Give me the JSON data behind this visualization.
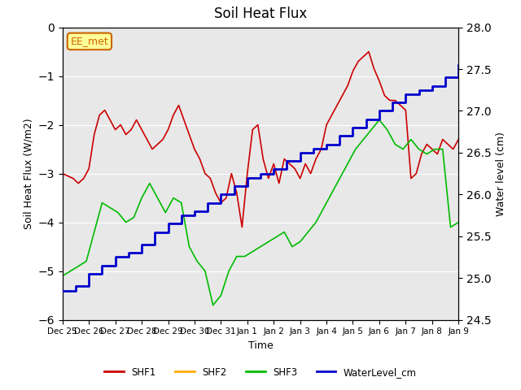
{
  "title": "Soil Heat Flux",
  "xlabel": "Time",
  "ylabel_left": "Soil Heat Flux (W/m2)",
  "ylabel_right": "Water level (cm)",
  "ylim_left": [
    -6.0,
    0.0
  ],
  "ylim_right": [
    24.5,
    28.0
  ],
  "bg_color": "#e8e8e8",
  "annotation_text": "EE_met",
  "annotation_color": "#cc6600",
  "annotation_bg": "#ffff99",
  "shf2_color": "#ffaa00",
  "shf1_color": "#cc0000",
  "shf3_color": "#00bb00",
  "water_color": "#0000cc",
  "xtick_labels": [
    "Dec 25",
    "Dec 26",
    "Dec 27",
    "Dec 28",
    "Dec 29",
    "Dec 30",
    "Dec 31",
    "Jan 1",
    "Jan 2",
    "Jan 3",
    "Jan 4",
    "Jan 5",
    "Jan 6",
    "Jan 7",
    "Jan 8",
    "Jan 9"
  ],
  "shf1_x": [
    0,
    0.2,
    0.4,
    0.6,
    0.8,
    1.0,
    1.2,
    1.4,
    1.6,
    1.8,
    2.0,
    2.2,
    2.4,
    2.6,
    2.8,
    3.0,
    3.2,
    3.4,
    3.6,
    3.8,
    4.0,
    4.2,
    4.4,
    4.6,
    4.8,
    5.0,
    5.2,
    5.4,
    5.6,
    5.8,
    6.0,
    6.2,
    6.4,
    6.6,
    6.8,
    7.0,
    7.2,
    7.4,
    7.6,
    7.8,
    8.0,
    8.2,
    8.4,
    8.6,
    8.8,
    9.0,
    9.2,
    9.4,
    9.6,
    9.8,
    10.0,
    10.2,
    10.4,
    10.6,
    10.8,
    11.0,
    11.2,
    11.4,
    11.6,
    11.8,
    12.0,
    12.2,
    12.4,
    12.6,
    12.8,
    13.0,
    13.2,
    13.4,
    13.6,
    13.8,
    14.0,
    14.2,
    14.4,
    14.6,
    14.8,
    15.0
  ],
  "shf1_y": [
    -3.0,
    -3.05,
    -3.1,
    -3.2,
    -3.1,
    -2.9,
    -2.2,
    -1.8,
    -1.7,
    -1.9,
    -2.1,
    -2.0,
    -2.2,
    -2.1,
    -1.9,
    -2.1,
    -2.3,
    -2.5,
    -2.4,
    -2.3,
    -2.1,
    -1.8,
    -1.6,
    -1.9,
    -2.2,
    -2.5,
    -2.7,
    -3.0,
    -3.1,
    -3.4,
    -3.6,
    -3.5,
    -3.0,
    -3.4,
    -4.1,
    -3.0,
    -2.1,
    -2.0,
    -2.7,
    -3.1,
    -2.8,
    -3.2,
    -2.7,
    -2.8,
    -2.9,
    -3.1,
    -2.8,
    -3.0,
    -2.7,
    -2.5,
    -2.0,
    -1.8,
    -1.6,
    -1.4,
    -1.2,
    -0.9,
    -0.7,
    -0.6,
    -0.5,
    -0.85,
    -1.1,
    -1.4,
    -1.5,
    -1.5,
    -1.6,
    -1.7,
    -3.1,
    -3.0,
    -2.6,
    -2.4,
    -2.5,
    -2.6,
    -2.3,
    -2.4,
    -2.5,
    -2.3
  ],
  "shf3_x": [
    0,
    0.3,
    0.6,
    0.9,
    1.2,
    1.5,
    1.8,
    2.1,
    2.4,
    2.7,
    3.0,
    3.3,
    3.6,
    3.9,
    4.2,
    4.5,
    4.8,
    5.1,
    5.4,
    5.7,
    6.0,
    6.3,
    6.6,
    6.9,
    7.2,
    7.5,
    7.8,
    8.1,
    8.4,
    8.7,
    9.0,
    9.3,
    9.6,
    9.9,
    10.2,
    10.5,
    10.8,
    11.1,
    11.4,
    11.7,
    12.0,
    12.3,
    12.6,
    12.9,
    13.2,
    13.5,
    13.8,
    14.1,
    14.4,
    14.7,
    15.0
  ],
  "shf3_y": [
    -5.1,
    -5.0,
    -4.9,
    -4.8,
    -4.2,
    -3.6,
    -3.7,
    -3.8,
    -4.0,
    -3.9,
    -3.5,
    -3.2,
    -3.5,
    -3.8,
    -3.5,
    -3.6,
    -4.5,
    -4.8,
    -5.0,
    -5.7,
    -5.5,
    -5.0,
    -4.7,
    -4.7,
    -4.6,
    -4.5,
    -4.4,
    -4.3,
    -4.2,
    -4.5,
    -4.4,
    -4.2,
    -4.0,
    -3.7,
    -3.4,
    -3.1,
    -2.8,
    -2.5,
    -2.3,
    -2.1,
    -1.9,
    -2.1,
    -2.4,
    -2.5,
    -2.3,
    -2.5,
    -2.6,
    -2.5,
    -2.5,
    -4.1,
    -4.0
  ],
  "water_x": [
    0,
    0.5,
    1.0,
    1.5,
    2.0,
    2.5,
    3.0,
    3.5,
    4.0,
    4.5,
    5.0,
    5.5,
    6.0,
    6.5,
    7.0,
    7.5,
    8.0,
    8.5,
    9.0,
    9.5,
    10.0,
    10.5,
    11.0,
    11.5,
    12.0,
    12.5,
    13.0,
    13.5,
    14.0,
    14.5,
    15.0
  ],
  "water_y": [
    24.85,
    24.9,
    25.05,
    25.15,
    25.25,
    25.3,
    25.4,
    25.55,
    25.65,
    25.75,
    25.8,
    25.9,
    26.0,
    26.1,
    26.2,
    26.25,
    26.3,
    26.4,
    26.5,
    26.55,
    26.6,
    26.7,
    26.8,
    26.9,
    27.0,
    27.1,
    27.2,
    27.25,
    27.3,
    27.4,
    27.55
  ]
}
